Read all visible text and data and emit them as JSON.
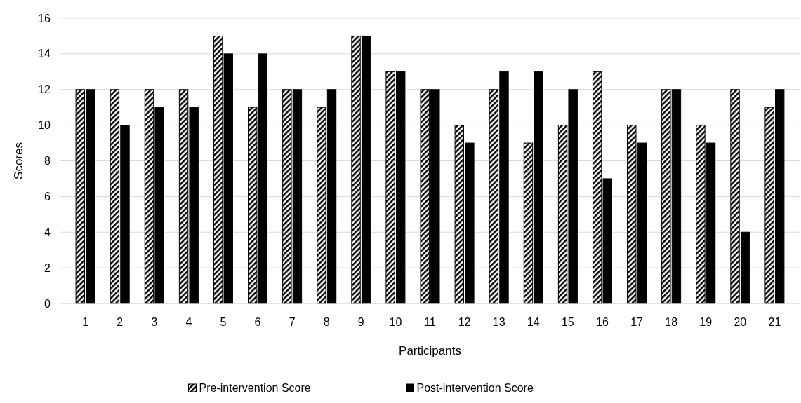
{
  "chart_data": {
    "type": "bar",
    "xlabel": "Participants",
    "ylabel": "Scores",
    "categories": [
      "1",
      "2",
      "3",
      "4",
      "5",
      "6",
      "7",
      "8",
      "9",
      "10",
      "11",
      "12",
      "13",
      "14",
      "15",
      "16",
      "17",
      "18",
      "19",
      "20",
      "21"
    ],
    "series": [
      {
        "name": "Pre-intervention Score",
        "color": "#000000",
        "values": [
          12,
          12,
          12,
          12,
          15,
          11,
          12,
          11,
          15,
          13,
          12,
          10,
          12,
          9,
          10,
          13,
          10,
          12,
          10,
          12,
          11
        ]
      },
      {
        "name": "Post-intervention Score",
        "color": "#000000",
        "values": [
          12,
          10,
          11,
          11,
          14,
          14,
          12,
          12,
          15,
          13,
          12,
          9,
          13,
          13,
          12,
          7,
          9,
          12,
          9,
          4,
          12
        ]
      }
    ],
    "ylim": [
      0,
      16
    ],
    "yticks": [
      0,
      2,
      4,
      6,
      8,
      10,
      12,
      14,
      16
    ],
    "grid": "y",
    "legend": "bottom"
  }
}
